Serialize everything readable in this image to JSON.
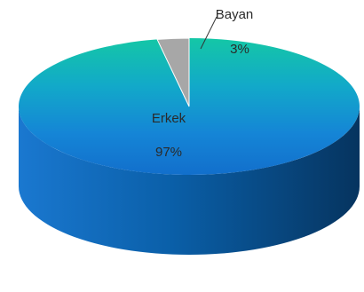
{
  "chart_data": {
    "type": "pie",
    "style": "3d",
    "title": "",
    "slices": [
      {
        "label": "Erkek",
        "value": 97,
        "value_label": "97%",
        "color": "#1585c9"
      },
      {
        "label": "Bayan",
        "value": 3,
        "value_label": "3%",
        "color": "#a7a7a7"
      }
    ],
    "legend": "none"
  }
}
